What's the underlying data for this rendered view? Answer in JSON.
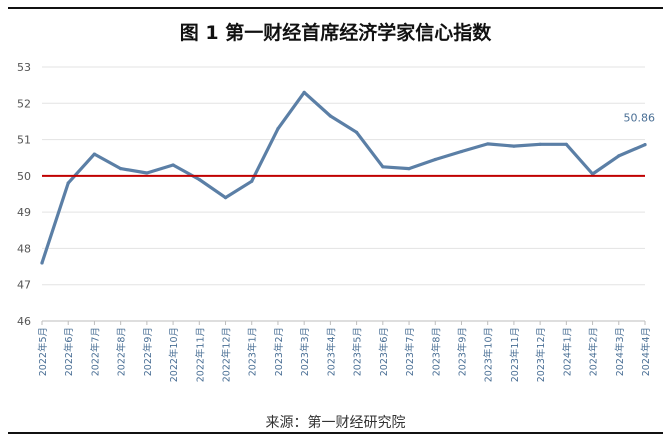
{
  "title": "图 1  第一财经首席经济学家信心指数",
  "source": "来源：第一财经研究院",
  "chart_data": {
    "type": "line",
    "categories": [
      "2022年5月",
      "2022年6月",
      "2022年7月",
      "2022年8月",
      "2022年9月",
      "2022年10月",
      "2022年11月",
      "2022年12月",
      "2023年1月",
      "2023年2月",
      "2023年3月",
      "2023年4月",
      "2023年5月",
      "2023年6月",
      "2023年7月",
      "2023年8月",
      "2023年9月",
      "2023年10月",
      "2023年11月",
      "2023年12月",
      "2024年1月",
      "2024年2月",
      "2024年3月",
      "2024年4月"
    ],
    "series": [
      {
        "values": [
          47.6,
          49.8,
          50.6,
          50.2,
          50.08,
          50.3,
          49.9,
          49.4,
          49.85,
          51.3,
          52.3,
          51.65,
          51.2,
          50.25,
          50.2,
          50.45,
          50.67,
          50.88,
          50.82,
          50.87,
          50.87,
          50.05,
          50.55,
          50.86
        ],
        "color": "#5b7fa6"
      }
    ],
    "reference_line": {
      "value": 50,
      "color": "#c00000"
    },
    "data_label": {
      "index": 23,
      "text": "50.86"
    },
    "yticks": [
      "46",
      "47",
      "48",
      "49",
      "50",
      "51",
      "52",
      "53"
    ],
    "ylim": [
      46,
      53
    ],
    "grid": true,
    "legend": "none"
  }
}
